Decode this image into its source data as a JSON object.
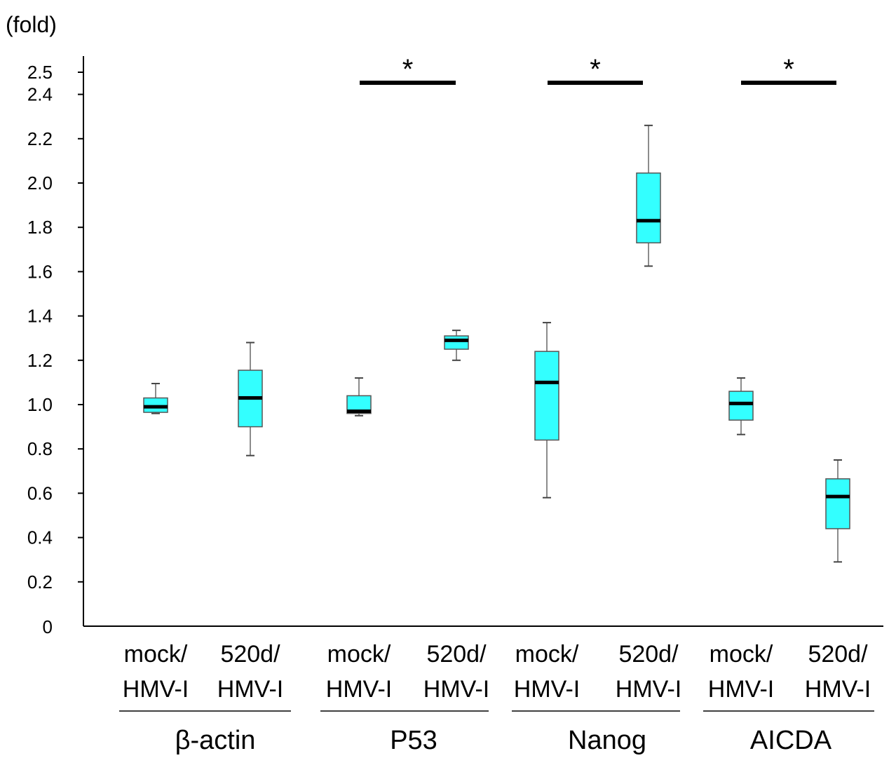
{
  "chart_data": {
    "type": "box",
    "y_unit_label": "(fold)",
    "ylim": [
      0,
      2.5
    ],
    "yticks": [
      {
        "value": 0,
        "label": "0"
      },
      {
        "value": 0.2,
        "label": "0.2"
      },
      {
        "value": 0.4,
        "label": "0.4"
      },
      {
        "value": 0.6,
        "label": "0.6"
      },
      {
        "value": 0.8,
        "label": "0.8"
      },
      {
        "value": 1.0,
        "label": "1.0"
      },
      {
        "value": 1.2,
        "label": "1.2"
      },
      {
        "value": 1.4,
        "label": "1.4"
      },
      {
        "value": 1.6,
        "label": "1.6"
      },
      {
        "value": 1.8,
        "label": "1.8"
      },
      {
        "value": 2.0,
        "label": "2.0"
      },
      {
        "value": 2.2,
        "label": "2.2"
      },
      {
        "value": 2.4,
        "label": "2.4"
      },
      {
        "value": 2.5,
        "label": "2.5"
      }
    ],
    "box_color": "#33ffff",
    "groups": [
      {
        "gene": "β-actin",
        "significant": false,
        "boxes": [
          {
            "line1": "mock/",
            "line2": "HMV-I",
            "min": 0.96,
            "q1": 0.965,
            "median": 0.99,
            "q3": 1.03,
            "max": 1.095
          },
          {
            "line1": "520d/",
            "line2": "HMV-I",
            "min": 0.77,
            "q1": 0.9,
            "median": 1.03,
            "q3": 1.155,
            "max": 1.28
          }
        ]
      },
      {
        "gene": "P53",
        "significant": true,
        "significance_label": "*",
        "boxes": [
          {
            "line1": "mock/",
            "line2": "HMV-I",
            "min": 0.95,
            "q1": 0.96,
            "median": 0.97,
            "q3": 1.04,
            "max": 1.12
          },
          {
            "line1": "520d/",
            "line2": "HMV-I",
            "min": 1.2,
            "q1": 1.25,
            "median": 1.29,
            "q3": 1.31,
            "max": 1.335
          }
        ]
      },
      {
        "gene": "Nanog",
        "significant": true,
        "significance_label": "*",
        "boxes": [
          {
            "line1": "mock/",
            "line2": "HMV-I",
            "min": 0.58,
            "q1": 0.84,
            "median": 1.1,
            "q3": 1.24,
            "max": 1.37
          },
          {
            "line1": "520d/",
            "line2": "HMV-I",
            "min": 1.625,
            "q1": 1.73,
            "median": 1.83,
            "q3": 2.045,
            "max": 2.26
          }
        ]
      },
      {
        "gene": "AICDA",
        "significant": true,
        "significance_label": "*",
        "boxes": [
          {
            "line1": "mock/",
            "line2": "HMV-I",
            "min": 0.865,
            "q1": 0.93,
            "median": 1.005,
            "q3": 1.06,
            "max": 1.12
          },
          {
            "line1": "520d/",
            "line2": "HMV-I",
            "min": 0.29,
            "q1": 0.44,
            "median": 0.585,
            "q3": 0.665,
            "max": 0.75
          }
        ]
      }
    ]
  }
}
